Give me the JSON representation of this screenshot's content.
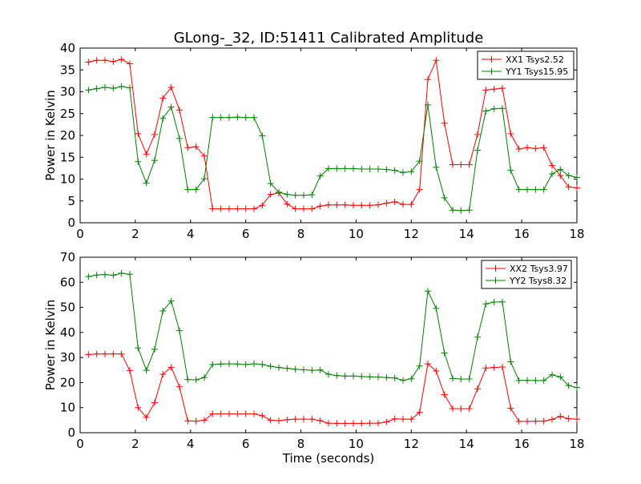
{
  "figure": {
    "title": "GLong-_32, ID:51411 Calibrated Amplitude",
    "colors": {
      "xx": "#ff0000",
      "yy": "#008000"
    }
  },
  "chart_data": [
    {
      "type": "line",
      "xlabel": "",
      "ylabel": "Power in Kelvin",
      "xlim": [
        0,
        18
      ],
      "ylim": [
        0,
        40
      ],
      "xticks": [
        0,
        2,
        4,
        6,
        8,
        10,
        12,
        14,
        16,
        18
      ],
      "yticks": [
        0,
        5,
        10,
        15,
        20,
        25,
        30,
        35,
        40
      ],
      "legend_position": "top-right",
      "x": [
        0.3,
        0.6,
        0.9,
        1.2,
        1.5,
        1.8,
        2.1,
        2.4,
        2.7,
        3.0,
        3.3,
        3.6,
        3.9,
        4.2,
        4.5,
        4.8,
        5.1,
        5.4,
        5.7,
        6.0,
        6.3,
        6.6,
        6.9,
        7.2,
        7.5,
        7.8,
        8.1,
        8.4,
        8.7,
        9.0,
        9.3,
        9.6,
        9.9,
        10.2,
        10.5,
        10.8,
        11.1,
        11.4,
        11.7,
        12.0,
        12.3,
        12.6,
        12.9,
        13.2,
        13.5,
        13.8,
        14.1,
        14.4,
        14.7,
        15.0,
        15.3,
        15.6,
        15.9,
        16.2,
        16.5,
        16.8,
        17.1,
        17.4,
        17.7,
        18.0
      ],
      "series": [
        {
          "name": "XX1 Tsys2.52",
          "color": "#ff0000",
          "values": [
            36.8,
            37.2,
            37.2,
            36.9,
            37.4,
            36.4,
            20.4,
            15.7,
            20.2,
            28.5,
            31.0,
            25.8,
            17.2,
            17.4,
            15.3,
            3.2,
            3.2,
            3.2,
            3.2,
            3.2,
            3.2,
            4.0,
            6.5,
            6.8,
            4.3,
            3.2,
            3.2,
            3.2,
            3.8,
            4.1,
            4.1,
            4.1,
            4.0,
            4.0,
            4.0,
            4.1,
            4.5,
            4.8,
            4.2,
            4.2,
            7.6,
            32.8,
            37.2,
            22.8,
            13.3,
            13.3,
            13.3,
            20.2,
            30.4,
            30.6,
            30.8,
            20.4,
            16.9,
            17.2,
            17.0,
            17.2,
            13.1,
            10.8,
            8.2,
            8.0
          ]
        },
        {
          "name": "YY1 Tsys15.95",
          "color": "#008000",
          "values": [
            30.4,
            30.7,
            31.0,
            30.8,
            31.2,
            30.9,
            14.0,
            9.1,
            14.3,
            23.9,
            26.5,
            19.3,
            7.6,
            7.6,
            10.1,
            24.1,
            24.1,
            24.1,
            24.2,
            24.1,
            24.1,
            19.9,
            9.0,
            7.0,
            6.5,
            6.3,
            6.3,
            6.4,
            10.7,
            12.4,
            12.4,
            12.4,
            12.4,
            12.3,
            12.3,
            12.3,
            12.2,
            12.0,
            11.5,
            11.7,
            14.1,
            27.0,
            12.7,
            5.7,
            2.9,
            2.8,
            2.9,
            16.6,
            25.6,
            26.1,
            26.2,
            12.0,
            7.6,
            7.6,
            7.6,
            7.6,
            11.2,
            12.2,
            10.8,
            10.4
          ]
        }
      ]
    },
    {
      "type": "line",
      "xlabel": "Time (seconds)",
      "ylabel": "Power in Kelvin",
      "xlim": [
        0,
        18
      ],
      "ylim": [
        0,
        70
      ],
      "xticks": [
        0,
        2,
        4,
        6,
        8,
        10,
        12,
        14,
        16,
        18
      ],
      "yticks": [
        0,
        10,
        20,
        30,
        40,
        50,
        60,
        70
      ],
      "legend_position": "top-right",
      "x": [
        0.3,
        0.6,
        0.9,
        1.2,
        1.5,
        1.8,
        2.1,
        2.4,
        2.7,
        3.0,
        3.3,
        3.6,
        3.9,
        4.2,
        4.5,
        4.8,
        5.1,
        5.4,
        5.7,
        6.0,
        6.3,
        6.6,
        6.9,
        7.2,
        7.5,
        7.8,
        8.1,
        8.4,
        8.7,
        9.0,
        9.3,
        9.6,
        9.9,
        10.2,
        10.5,
        10.8,
        11.1,
        11.4,
        11.7,
        12.0,
        12.3,
        12.6,
        12.9,
        13.2,
        13.5,
        13.8,
        14.1,
        14.4,
        14.7,
        15.0,
        15.3,
        15.6,
        15.9,
        16.2,
        16.5,
        16.8,
        17.1,
        17.4,
        17.7,
        18.0
      ],
      "series": [
        {
          "name": "XX2 Tsys3.97",
          "color": "#ff0000",
          "values": [
            31.2,
            31.4,
            31.4,
            31.4,
            31.4,
            24.8,
            10.0,
            6.1,
            12.0,
            23.3,
            26.1,
            18.3,
            4.7,
            4.6,
            5.0,
            7.5,
            7.5,
            7.5,
            7.5,
            7.5,
            7.5,
            6.8,
            5.0,
            4.8,
            5.2,
            5.4,
            5.4,
            5.4,
            4.8,
            3.8,
            3.7,
            3.7,
            3.7,
            3.7,
            3.8,
            3.8,
            4.3,
            5.5,
            5.4,
            5.4,
            8.1,
            27.5,
            24.6,
            15.2,
            9.6,
            9.6,
            9.6,
            17.5,
            25.8,
            26.0,
            26.2,
            9.8,
            4.5,
            4.5,
            4.6,
            4.6,
            5.3,
            6.5,
            5.6,
            5.4
          ]
        },
        {
          "name": "YY2 Tsys8.32",
          "color": "#008000",
          "values": [
            62.3,
            62.9,
            63.1,
            62.8,
            63.6,
            63.2,
            33.8,
            24.9,
            33.3,
            48.6,
            52.5,
            40.7,
            21.2,
            21.1,
            22.0,
            27.2,
            27.4,
            27.5,
            27.4,
            27.2,
            27.5,
            27.2,
            26.5,
            26.0,
            25.7,
            25.3,
            25.1,
            24.9,
            25.0,
            23.3,
            22.8,
            22.6,
            22.6,
            22.4,
            22.3,
            22.2,
            22.0,
            21.8,
            20.9,
            21.5,
            26.6,
            56.5,
            49.6,
            31.8,
            21.6,
            21.4,
            21.4,
            38.1,
            51.4,
            52.1,
            52.2,
            28.3,
            20.8,
            20.9,
            20.8,
            20.8,
            23.1,
            22.2,
            18.8,
            18.0
          ]
        }
      ]
    }
  ]
}
